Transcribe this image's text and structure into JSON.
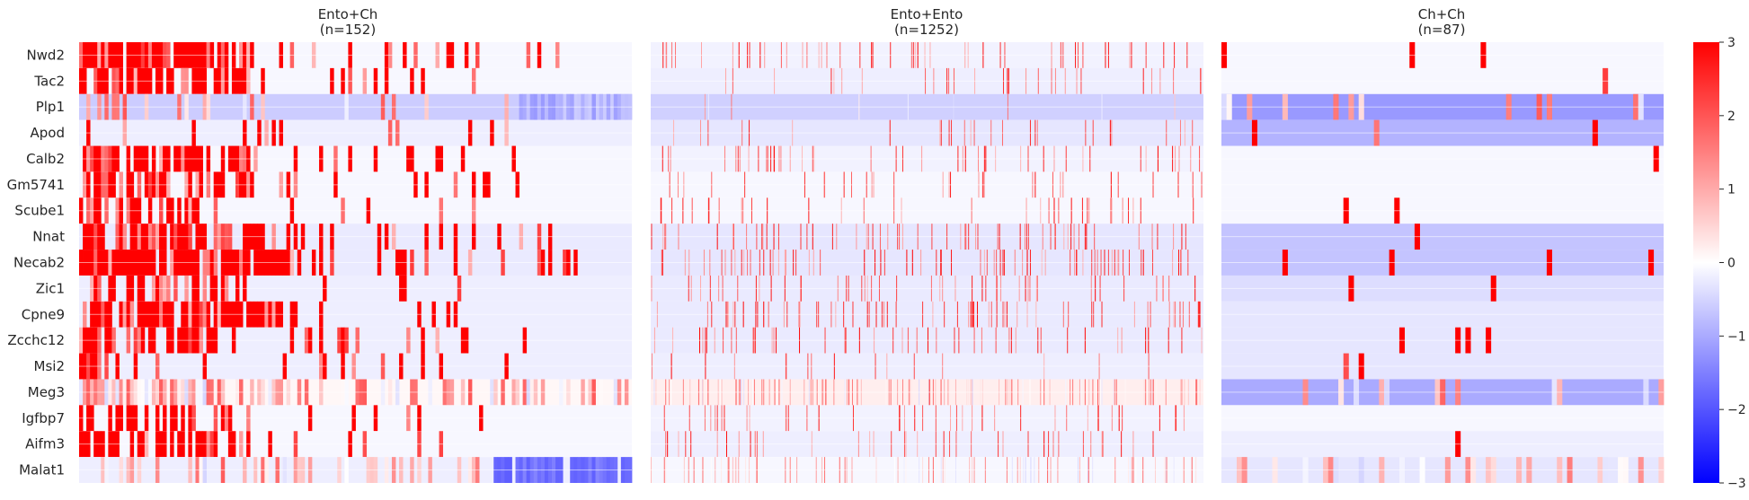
{
  "chart_data": {
    "type": "heatmap",
    "genes": [
      "Nwd2",
      "Tac2",
      "Plp1",
      "Apod",
      "Calb2",
      "Gm5741",
      "Scube1",
      "Nnat",
      "Necab2",
      "Zic1",
      "Cpne9",
      "Zcchc12",
      "Msi2",
      "Meg3",
      "Igfbp7",
      "Aifm3",
      "Malat1"
    ],
    "panels": [
      {
        "title": "Ento+Ch",
        "n_label": "(n=152)",
        "n_cells": 152,
        "row_background": [
          -0.1,
          -0.1,
          -0.6,
          -0.2,
          -0.1,
          -0.1,
          -0.1,
          -0.25,
          -0.25,
          -0.2,
          -0.2,
          -0.2,
          -0.2,
          0.1,
          -0.1,
          -0.1,
          -0.2
        ],
        "active_fraction": [
          0.35,
          0.33,
          0.25,
          0.17,
          0.32,
          0.25,
          0.22,
          0.3,
          0.36,
          0.25,
          0.32,
          0.25,
          0.22,
          0.7,
          0.2,
          0.21,
          0.6
        ],
        "active_extent": [
          0.88,
          0.78,
          0.79,
          0.85,
          0.8,
          0.79,
          0.79,
          0.89,
          0.9,
          0.7,
          0.7,
          0.87,
          0.79,
          1.0,
          0.76,
          0.75,
          0.74
        ],
        "dense_until": [
          0.31,
          0.31,
          0.0,
          0.0,
          0.33,
          0.31,
          0.25,
          0.33,
          0.4,
          0.3,
          0.36,
          0.25,
          0.11,
          0.25,
          0.29,
          0.25,
          0.0
        ],
        "tail_value": [
          null,
          null,
          -0.9,
          null,
          null,
          null,
          null,
          null,
          null,
          null,
          null,
          null,
          null,
          null,
          null,
          null,
          -1.6
        ]
      },
      {
        "title": "Ento+Ento",
        "n_label": "(n=1252)",
        "n_cells": 1252,
        "row_background": [
          -0.15,
          -0.2,
          -0.55,
          -0.3,
          -0.15,
          -0.1,
          -0.1,
          -0.3,
          -0.3,
          -0.25,
          -0.25,
          -0.25,
          -0.2,
          0.2,
          -0.15,
          -0.2,
          -0.1
        ],
        "active_fraction": [
          0.06,
          0.04,
          0.02,
          0.05,
          0.07,
          0.05,
          0.04,
          0.08,
          0.1,
          0.07,
          0.09,
          0.06,
          0.05,
          0.2,
          0.06,
          0.06,
          0.12
        ],
        "active_extent": [
          1,
          1,
          1,
          1,
          1,
          1,
          1,
          1,
          1,
          1,
          1,
          1,
          1,
          1,
          1,
          1,
          1
        ],
        "dense_until": [
          0,
          0,
          0,
          0,
          0,
          0,
          0,
          0,
          0,
          0,
          0,
          0,
          0,
          0,
          0,
          0,
          0
        ],
        "tail_value": [
          null,
          null,
          null,
          null,
          null,
          null,
          null,
          null,
          null,
          null,
          null,
          null,
          null,
          null,
          null,
          null,
          null
        ]
      },
      {
        "title": "Ch+Ch",
        "n_label": "(n=87)",
        "n_cells": 87,
        "row_background": [
          -0.1,
          -0.1,
          -1.2,
          -0.9,
          -0.1,
          -0.1,
          -0.1,
          -0.7,
          -0.7,
          -0.4,
          -0.3,
          -0.3,
          -0.3,
          -1.0,
          -0.1,
          -0.2,
          -0.3
        ],
        "active_fraction": [
          0.05,
          0.03,
          0.25,
          0.1,
          0.03,
          0.0,
          0.02,
          0.03,
          0.06,
          0.08,
          0.02,
          0.06,
          0.09,
          0.22,
          0.04,
          0.04,
          0.5
        ],
        "active_extent": [
          1,
          1,
          1,
          1,
          1,
          1,
          1,
          1,
          1,
          1,
          1,
          1,
          1,
          1,
          1,
          1,
          1
        ],
        "dense_until": [
          0,
          0,
          0,
          0,
          0,
          0,
          0,
          0,
          0,
          0,
          0,
          0,
          0,
          0,
          0,
          0,
          0
        ],
        "tail_value": [
          null,
          null,
          null,
          null,
          null,
          null,
          null,
          null,
          null,
          null,
          null,
          null,
          null,
          null,
          null,
          null,
          null
        ]
      }
    ],
    "colorbar": {
      "cmap": "bwr",
      "range": [
        -3,
        3
      ],
      "ticks": [
        "3",
        "2",
        "1",
        "0",
        "−1",
        "−2",
        "−3"
      ]
    },
    "colors": {
      "high": "#ff0000",
      "mid": "#ffffff",
      "low": "#0000ff"
    }
  }
}
